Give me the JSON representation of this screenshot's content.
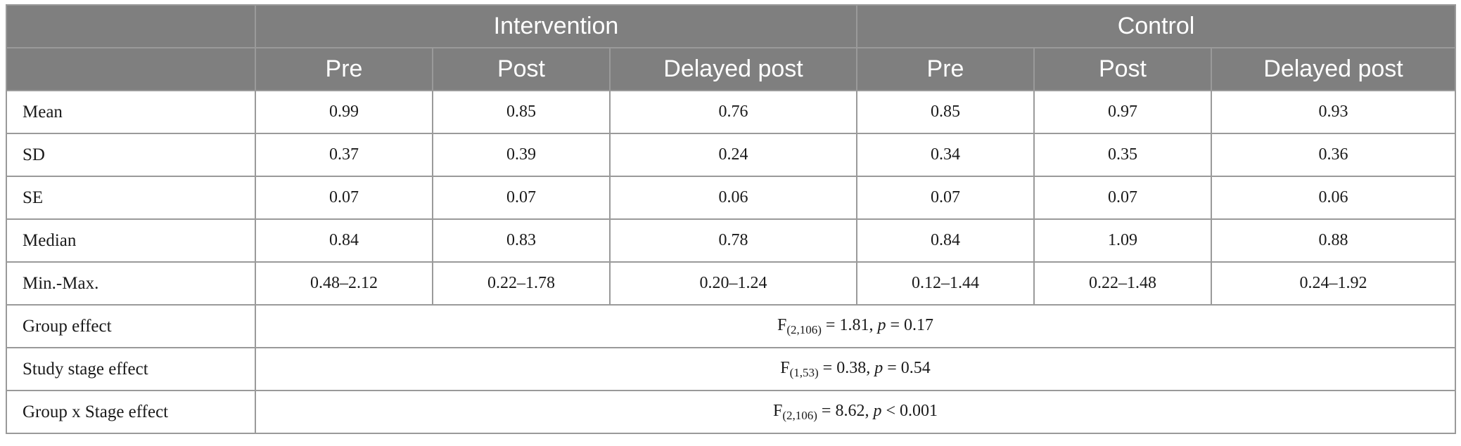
{
  "header": {
    "groups": [
      "Intervention",
      "Control"
    ],
    "stages": [
      "Pre",
      "Post",
      "Delayed post",
      "Pre",
      "Post",
      "Delayed post"
    ]
  },
  "rows": [
    {
      "label": "Mean",
      "values": [
        "0.99",
        "0.85",
        "0.76",
        "0.85",
        "0.97",
        "0.93"
      ]
    },
    {
      "label": "SD",
      "values": [
        "0.37",
        "0.39",
        "0.24",
        "0.34",
        "0.35",
        "0.36"
      ]
    },
    {
      "label": "SE",
      "values": [
        "0.07",
        "0.07",
        "0.06",
        "0.07",
        "0.07",
        "0.06"
      ]
    },
    {
      "label": "Median",
      "values": [
        "0.84",
        "0.83",
        "0.78",
        "0.84",
        "1.09",
        "0.88"
      ]
    },
    {
      "label": "Min.-Max.",
      "values": [
        "0.48–2.12",
        "0.22–1.78",
        "0.20–1.24",
        "0.12–1.44",
        "0.22–1.48",
        "0.24–1.92"
      ]
    }
  ],
  "effects": [
    {
      "label": "Group effect",
      "stat": "F",
      "df": "(2,106)",
      "eq": " = 1.81, ",
      "p_symbol": "p",
      "p_part": " = 0.17"
    },
    {
      "label": "Study stage effect",
      "stat": "F",
      "df": "(1,53)",
      "eq": " = 0.38, ",
      "p_symbol": "p",
      "p_part": " = 0.54"
    },
    {
      "label": "Group x Stage effect",
      "stat": "F",
      "df": "(2,106)",
      "eq": " = 8.62, ",
      "p_symbol": "p",
      "p_part": " < 0.001"
    }
  ]
}
